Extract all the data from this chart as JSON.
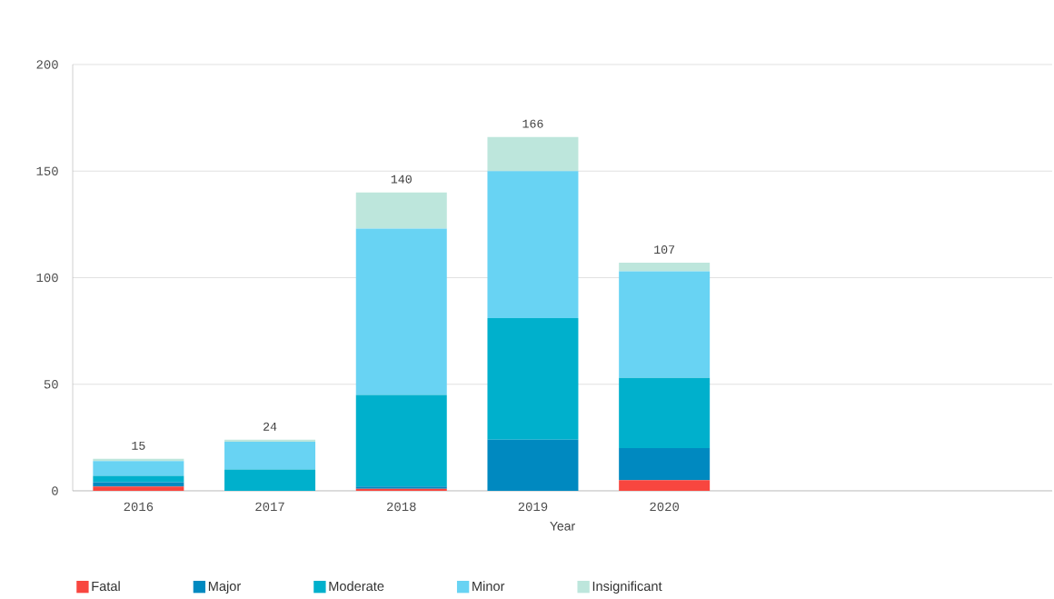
{
  "chart_data": {
    "type": "bar",
    "stacked": true,
    "xlabel": "Year",
    "categories": [
      "2016",
      "2017",
      "2018",
      "2019",
      "2020"
    ],
    "series": [
      {
        "name": "Fatal",
        "color": "#f8463f",
        "values": [
          2,
          0,
          1,
          0,
          5
        ]
      },
      {
        "name": "Major",
        "color": "#0089c0",
        "values": [
          2,
          0,
          1,
          24,
          15
        ]
      },
      {
        "name": "Moderate",
        "color": "#00b0cc",
        "values": [
          3,
          10,
          43,
          57,
          33
        ]
      },
      {
        "name": "Minor",
        "color": "#68d3f3",
        "values": [
          7,
          13,
          78,
          69,
          50
        ]
      },
      {
        "name": "Insignificant",
        "color": "#bde6dc",
        "values": [
          1,
          1,
          17,
          16,
          4
        ]
      }
    ],
    "totals": [
      "15",
      "24",
      "140",
      "166",
      "107"
    ],
    "ylim": [
      0,
      200
    ],
    "yticks": [
      0,
      50,
      100,
      150,
      200
    ],
    "grid": "y",
    "legend": "bottom"
  }
}
